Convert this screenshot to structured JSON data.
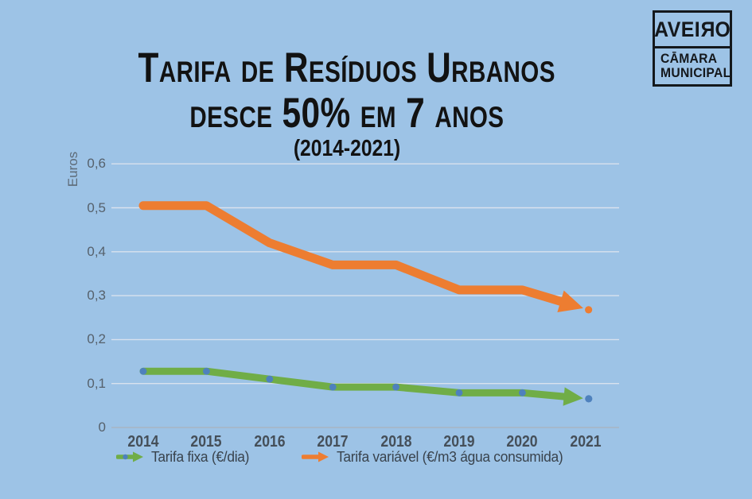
{
  "title": {
    "line1": "Tarifa de Resíduos Urbanos",
    "line2": "desce 50% em 7 anos",
    "line3": "(2014-2021)"
  },
  "logo": {
    "name_left": "AVEI",
    "name_mirrored_letter": "R",
    "name_right": "O",
    "sub_line1": "CĀMARA",
    "sub_line2": "MUNICIPAL"
  },
  "chart_data": {
    "type": "line",
    "title": "Tarifa de Resíduos Urbanos desce 50% em 7 anos (2014-2021)",
    "xlabel": "",
    "ylabel": "Euros",
    "categories": [
      "2014",
      "2015",
      "2016",
      "2017",
      "2018",
      "2019",
      "2020",
      "2021"
    ],
    "ylim": [
      0,
      0.6
    ],
    "grid": true,
    "legend_position": "bottom",
    "y_axis": {
      "tick_values": [
        0,
        0.1,
        0.2,
        0.3,
        0.4,
        0.5,
        0.6
      ],
      "tick_labels": [
        "0",
        "0,1",
        "0,2",
        "0,3",
        "0,4",
        "0,5",
        "0,6"
      ]
    },
    "series": [
      {
        "name": "Tarifa fixa (€/dia)",
        "color": "#70AD47",
        "marker_color": "#4E81BD",
        "stroke_width": 9,
        "markers": true,
        "arrow_end": true,
        "values": [
          0.128,
          0.128,
          0.11,
          0.092,
          0.092,
          0.079,
          0.079,
          0.066
        ]
      },
      {
        "name": "Tarifa variável (€/m3 água consumida)",
        "color": "#ED7D31",
        "marker_color": "#ED7D31",
        "stroke_width": 11,
        "markers": false,
        "arrow_end": true,
        "values": [
          0.505,
          0.505,
          0.42,
          0.37,
          0.37,
          0.313,
          0.313,
          0.27
        ]
      }
    ]
  },
  "colors": {
    "background": "#9DC3E6",
    "gridline": "#D9E2EE",
    "zero_line": "#A8B5C3",
    "title_text": "#121212",
    "axis_text": "#56616C",
    "year_text": "#454F59",
    "legend_text": "#39434D",
    "logo_ink": "#14181C"
  }
}
